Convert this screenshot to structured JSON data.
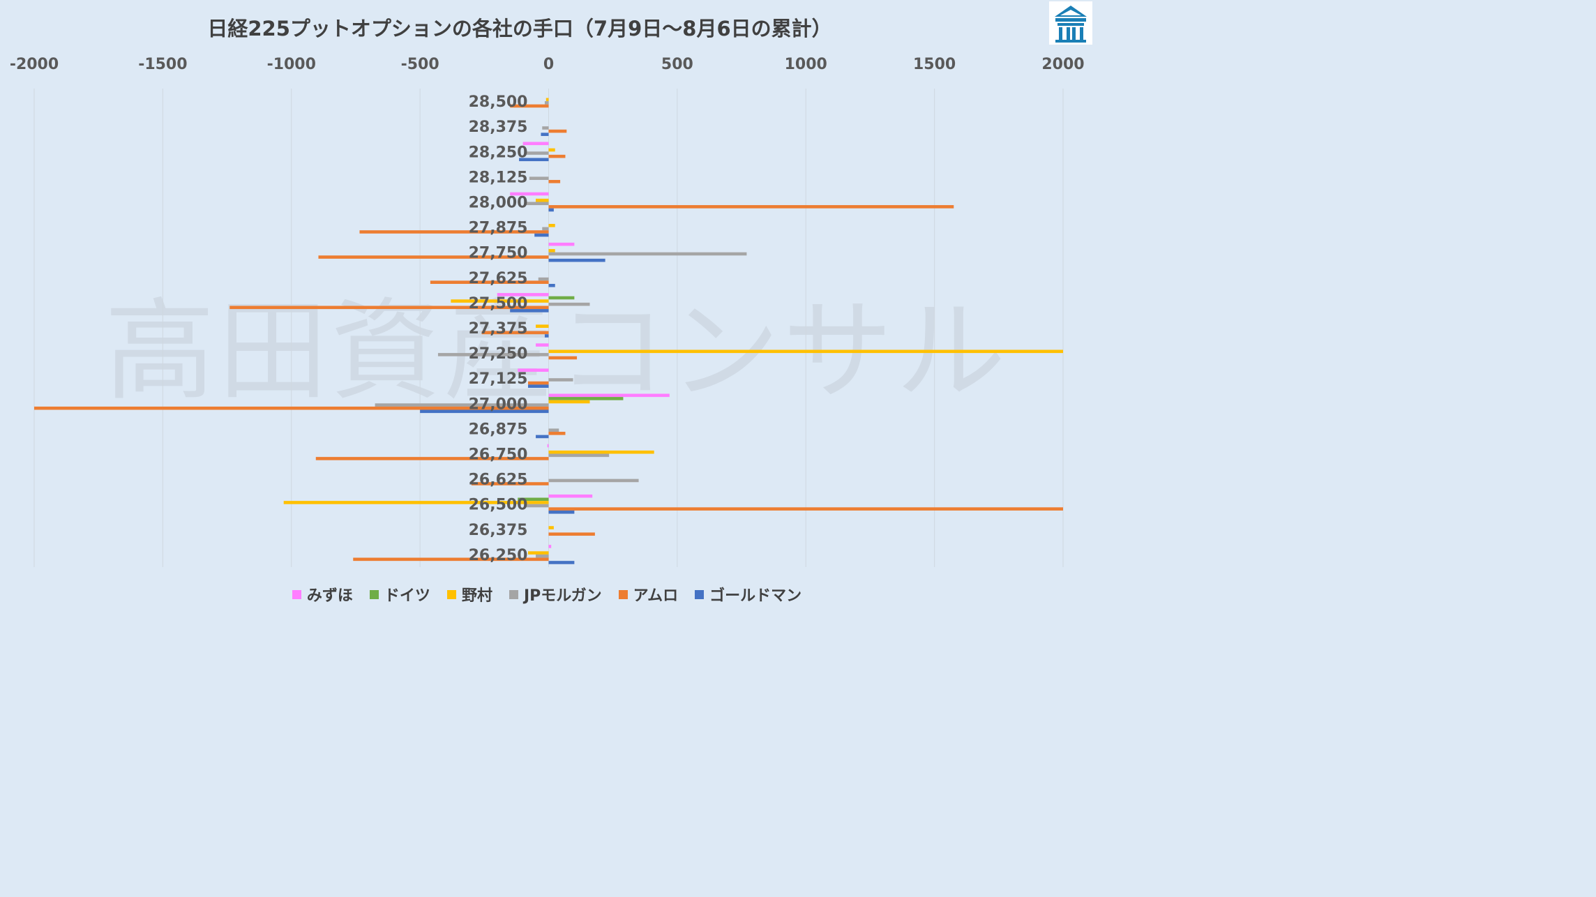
{
  "chart_data": {
    "type": "bar",
    "orientation": "horizontal",
    "title": "日経225プットオプションの各社の手口（7月9日～8月6日の累計）",
    "xlim": [
      -2000,
      2000
    ],
    "x_ticks": [
      "-2000",
      "-1500",
      "-1000",
      "-500",
      "0",
      "500",
      "1000",
      "1500",
      "2000"
    ],
    "grid": true,
    "legend_position": "bottom",
    "categories": [
      "28,500",
      "28,375",
      "28,250",
      "28,125",
      "28,000",
      "27,875",
      "27,750",
      "27,625",
      "27,500",
      "27,375",
      "27,250",
      "27,125",
      "27,000",
      "26,875",
      "26,750",
      "26,625",
      "26,500",
      "26,375",
      "26,250"
    ],
    "series": [
      {
        "name": "みずほ",
        "color": "#ff7dff",
        "values": [
          0,
          0,
          -100,
          0,
          -150,
          0,
          100,
          0,
          -200,
          0,
          -50,
          -120,
          470,
          0,
          -5,
          0,
          170,
          0,
          10
        ]
      },
      {
        "name": "ドイツ",
        "color": "#70ad47",
        "values": [
          0,
          0,
          0,
          0,
          0,
          0,
          0,
          0,
          100,
          0,
          0,
          0,
          290,
          0,
          0,
          0,
          -120,
          0,
          0
        ]
      },
      {
        "name": "野村",
        "color": "#ffc000",
        "values": [
          -10,
          0,
          25,
          0,
          -50,
          25,
          25,
          0,
          -380,
          -50,
          2000,
          0,
          160,
          0,
          410,
          0,
          -1030,
          20,
          -80
        ]
      },
      {
        "name": "JPモルガン",
        "color": "#a5a5a5",
        "values": [
          -15,
          -25,
          -90,
          -75,
          -90,
          -25,
          770,
          -40,
          160,
          0,
          -430,
          95,
          -675,
          40,
          235,
          350,
          -90,
          0,
          -50
        ]
      },
      {
        "name": "アムロ",
        "color": "#ed7d31",
        "values": [
          -150,
          70,
          65,
          45,
          1575,
          -735,
          -895,
          -460,
          -1240,
          -260,
          110,
          -80,
          -2000,
          65,
          -905,
          -300,
          2000,
          180,
          -760
        ]
      },
      {
        "name": "ゴールドマン",
        "color": "#4472c4",
        "values": [
          0,
          -30,
          -115,
          0,
          20,
          -55,
          220,
          25,
          -150,
          -15,
          0,
          -80,
          -500,
          -50,
          0,
          0,
          100,
          0,
          100
        ]
      }
    ]
  },
  "watermark": "高田資産コンサル",
  "logo_icon": "takata-logo-icon"
}
